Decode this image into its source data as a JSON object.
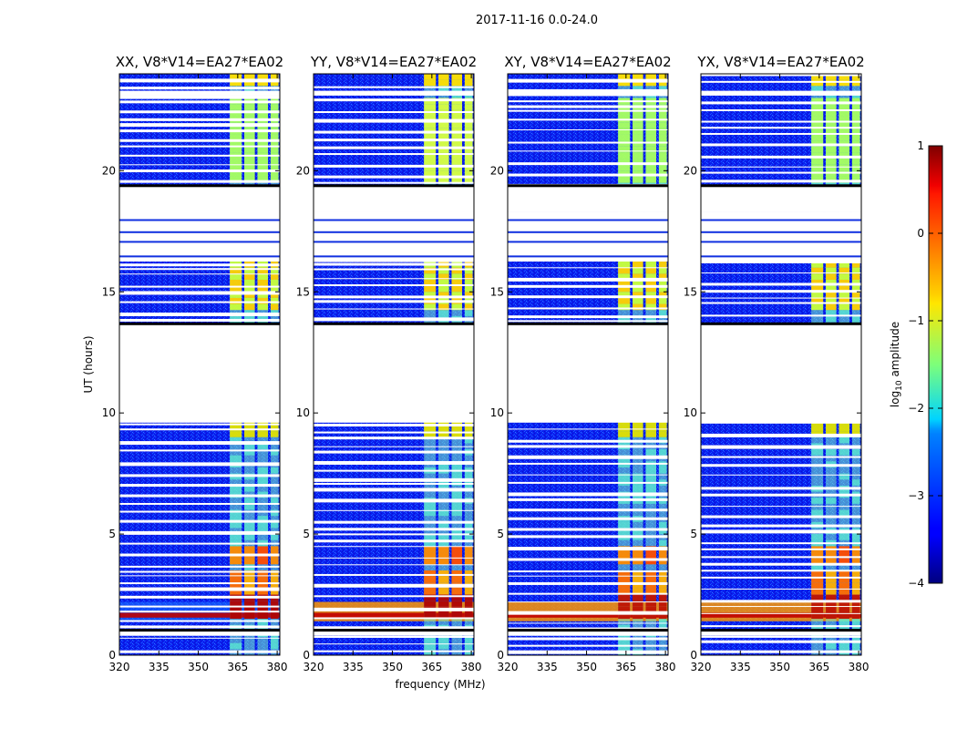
{
  "figure": {
    "suptitle": "2017-11-16 0.0-24.0",
    "xlabel": "frequency (MHz)",
    "ylabel": "UT (hours)"
  },
  "chart_data": {
    "type": "heatmap",
    "title": "2017-11-16 0.0-24.0",
    "xlabel": "frequency (MHz)",
    "ylabel": "UT (hours)",
    "xlim": [
      320,
      381
    ],
    "ylim": [
      0,
      24
    ],
    "xticks": [
      320,
      335,
      350,
      365,
      380
    ],
    "yticks": [
      0,
      5,
      10,
      15,
      20
    ],
    "panels": [
      {
        "title": "XX, V8*V14=EA27*EA02",
        "polarization": "XX"
      },
      {
        "title": "YY, V8*V14=EA27*EA02",
        "polarization": "YY"
      },
      {
        "title": "XY, V8*V14=EA27*EA02",
        "polarization": "XY"
      },
      {
        "title": "YX, V8*V14=EA27*EA02",
        "polarization": "YX"
      }
    ],
    "gaps_hours": [
      [
        9.6,
        13.7
      ],
      [
        18.3,
        19.4
      ],
      [
        23.1,
        23.3
      ],
      [
        0.8,
        1.05
      ]
    ],
    "rfi_bands_mhz": [
      [
        362,
        366.5
      ],
      [
        367.5,
        371.5
      ],
      [
        372.5,
        376.5
      ],
      [
        377.5,
        380.5
      ]
    ],
    "colorbar": {
      "label": "log10 amplitude",
      "range": [
        -4,
        1
      ],
      "ticks": [
        1,
        0,
        -1,
        -2,
        -3,
        -4
      ],
      "colormap": "jet"
    }
  },
  "colors": {
    "axes": "#000000",
    "background": "#ffffff"
  }
}
